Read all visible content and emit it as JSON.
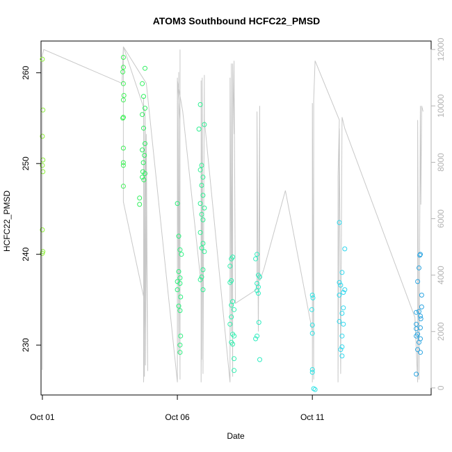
{
  "chart_data": {
    "type": "scatter",
    "title": "ATOM3 Southbound HCFC22_PMSD",
    "xlabel": "Date",
    "ylabel": "HCFC22_PMSD",
    "xlim": [
      -0.05,
      14.4
    ],
    "ylim": [
      224.5,
      263.5
    ],
    "y2lim": [
      -250,
      12300
    ],
    "x_ticks": [
      {
        "value": 0,
        "label": "Oct 01"
      },
      {
        "value": 5,
        "label": "Oct 06"
      },
      {
        "value": 10,
        "label": "Oct 11"
      }
    ],
    "y_ticks": [
      230,
      240,
      250,
      260
    ],
    "y2_ticks": [
      0,
      2000,
      4000,
      6000,
      8000,
      10000,
      12000
    ],
    "grid": false,
    "legend": "none",
    "colors": {
      "line": "#c8c8c8",
      "ramp": [
        "#8ef03a",
        "#2ef05a",
        "#2ef0b0",
        "#2ee0f0",
        "#2aa0e0"
      ]
    },
    "points": [
      {
        "x": 0.0,
        "y": 261.5
      },
      {
        "x": 0.02,
        "y": 255.9
      },
      {
        "x": 0.0,
        "y": 253.0
      },
      {
        "x": 0.02,
        "y": 250.4
      },
      {
        "x": 0.0,
        "y": 249.8
      },
      {
        "x": 0.02,
        "y": 249.1
      },
      {
        "x": 0.0,
        "y": 242.7
      },
      {
        "x": 0.02,
        "y": 240.3
      },
      {
        "x": 0.0,
        "y": 240.1
      },
      {
        "x": 3.0,
        "y": 261.7
      },
      {
        "x": 3.0,
        "y": 260.6
      },
      {
        "x": 2.98,
        "y": 260.1
      },
      {
        "x": 3.0,
        "y": 258.8
      },
      {
        "x": 3.02,
        "y": 257.5
      },
      {
        "x": 3.0,
        "y": 257.0
      },
      {
        "x": 3.0,
        "y": 255.1
      },
      {
        "x": 2.98,
        "y": 255.0
      },
      {
        "x": 3.0,
        "y": 251.7
      },
      {
        "x": 3.0,
        "y": 250.1
      },
      {
        "x": 3.0,
        "y": 249.8
      },
      {
        "x": 3.0,
        "y": 247.5
      },
      {
        "x": 3.8,
        "y": 260.5
      },
      {
        "x": 3.7,
        "y": 258.8
      },
      {
        "x": 3.75,
        "y": 257.4
      },
      {
        "x": 3.8,
        "y": 256.1
      },
      {
        "x": 3.7,
        "y": 255.4
      },
      {
        "x": 3.75,
        "y": 253.9
      },
      {
        "x": 3.8,
        "y": 252.2
      },
      {
        "x": 3.7,
        "y": 251.5
      },
      {
        "x": 3.78,
        "y": 250.9
      },
      {
        "x": 3.72,
        "y": 249.1
      },
      {
        "x": 3.8,
        "y": 248.9
      },
      {
        "x": 3.76,
        "y": 248.2
      },
      {
        "x": 3.74,
        "y": 250.1
      },
      {
        "x": 3.6,
        "y": 246.2
      },
      {
        "x": 3.6,
        "y": 245.5
      },
      {
        "x": 3.7,
        "y": 248.5
      },
      {
        "x": 5.0,
        "y": 245.6
      },
      {
        "x": 5.05,
        "y": 242.0
      },
      {
        "x": 5.1,
        "y": 240.5
      },
      {
        "x": 5.15,
        "y": 240.0
      },
      {
        "x": 5.05,
        "y": 238.1
      },
      {
        "x": 5.1,
        "y": 237.4
      },
      {
        "x": 5.0,
        "y": 237.0
      },
      {
        "x": 5.1,
        "y": 236.8
      },
      {
        "x": 5.0,
        "y": 236.1
      },
      {
        "x": 5.12,
        "y": 235.3
      },
      {
        "x": 5.05,
        "y": 234.3
      },
      {
        "x": 5.1,
        "y": 233.8
      },
      {
        "x": 5.12,
        "y": 231.0
      },
      {
        "x": 5.1,
        "y": 230.0
      },
      {
        "x": 5.1,
        "y": 229.2
      },
      {
        "x": 5.85,
        "y": 256.5
      },
      {
        "x": 5.8,
        "y": 253.8
      },
      {
        "x": 6.0,
        "y": 254.3
      },
      {
        "x": 5.9,
        "y": 249.8
      },
      {
        "x": 5.85,
        "y": 249.3
      },
      {
        "x": 5.95,
        "y": 248.5
      },
      {
        "x": 5.9,
        "y": 247.6
      },
      {
        "x": 5.95,
        "y": 246.5
      },
      {
        "x": 5.85,
        "y": 245.6
      },
      {
        "x": 6.0,
        "y": 245.1
      },
      {
        "x": 5.9,
        "y": 244.4
      },
      {
        "x": 5.95,
        "y": 243.8
      },
      {
        "x": 5.85,
        "y": 242.4
      },
      {
        "x": 5.95,
        "y": 241.2
      },
      {
        "x": 5.9,
        "y": 240.7
      },
      {
        "x": 6.0,
        "y": 240.3
      },
      {
        "x": 5.95,
        "y": 238.3
      },
      {
        "x": 5.9,
        "y": 237.5
      },
      {
        "x": 5.85,
        "y": 237.2
      },
      {
        "x": 5.95,
        "y": 236.1
      },
      {
        "x": 7.0,
        "y": 239.5
      },
      {
        "x": 7.05,
        "y": 239.7
      },
      {
        "x": 6.95,
        "y": 238.7
      },
      {
        "x": 7.0,
        "y": 237.1
      },
      {
        "x": 6.95,
        "y": 236.9
      },
      {
        "x": 7.05,
        "y": 234.8
      },
      {
        "x": 7.0,
        "y": 234.4
      },
      {
        "x": 7.1,
        "y": 233.9
      },
      {
        "x": 7.0,
        "y": 233.1
      },
      {
        "x": 6.95,
        "y": 232.3
      },
      {
        "x": 7.05,
        "y": 231.2
      },
      {
        "x": 7.1,
        "y": 231.0
      },
      {
        "x": 7.0,
        "y": 230.3
      },
      {
        "x": 7.05,
        "y": 230.1
      },
      {
        "x": 7.1,
        "y": 228.5
      },
      {
        "x": 7.1,
        "y": 227.2
      },
      {
        "x": 7.95,
        "y": 240.0
      },
      {
        "x": 7.9,
        "y": 239.5
      },
      {
        "x": 8.0,
        "y": 237.7
      },
      {
        "x": 8.05,
        "y": 237.5
      },
      {
        "x": 7.95,
        "y": 236.8
      },
      {
        "x": 8.0,
        "y": 236.4
      },
      {
        "x": 7.95,
        "y": 236.0
      },
      {
        "x": 8.0,
        "y": 235.7
      },
      {
        "x": 8.02,
        "y": 232.5
      },
      {
        "x": 7.95,
        "y": 231.0
      },
      {
        "x": 7.9,
        "y": 230.7
      },
      {
        "x": 8.05,
        "y": 228.4
      },
      {
        "x": 10.0,
        "y": 235.5
      },
      {
        "x": 10.02,
        "y": 235.2
      },
      {
        "x": 9.98,
        "y": 233.9
      },
      {
        "x": 10.0,
        "y": 232.2
      },
      {
        "x": 10.0,
        "y": 231.3
      },
      {
        "x": 10.0,
        "y": 227.3
      },
      {
        "x": 10.0,
        "y": 227.0
      },
      {
        "x": 10.05,
        "y": 225.2
      },
      {
        "x": 10.1,
        "y": 225.1
      },
      {
        "x": 11.0,
        "y": 243.5
      },
      {
        "x": 11.2,
        "y": 240.6
      },
      {
        "x": 11.1,
        "y": 238.0
      },
      {
        "x": 11.0,
        "y": 236.9
      },
      {
        "x": 11.05,
        "y": 236.6
      },
      {
        "x": 11.2,
        "y": 236.1
      },
      {
        "x": 11.15,
        "y": 235.8
      },
      {
        "x": 11.0,
        "y": 235.5
      },
      {
        "x": 11.15,
        "y": 234.1
      },
      {
        "x": 11.1,
        "y": 233.5
      },
      {
        "x": 11.0,
        "y": 232.6
      },
      {
        "x": 11.15,
        "y": 232.3
      },
      {
        "x": 11.1,
        "y": 231.0
      },
      {
        "x": 11.1,
        "y": 229.8
      },
      {
        "x": 11.05,
        "y": 229.5
      },
      {
        "x": 11.1,
        "y": 228.8
      },
      {
        "x": 14.0,
        "y": 240.0
      },
      {
        "x": 13.98,
        "y": 239.9
      },
      {
        "x": 13.95,
        "y": 238.5
      },
      {
        "x": 13.9,
        "y": 237.0
      },
      {
        "x": 14.05,
        "y": 235.5
      },
      {
        "x": 14.05,
        "y": 234.2
      },
      {
        "x": 13.95,
        "y": 233.7
      },
      {
        "x": 13.85,
        "y": 233.6
      },
      {
        "x": 14.0,
        "y": 233.2
      },
      {
        "x": 14.02,
        "y": 232.9
      },
      {
        "x": 13.85,
        "y": 232.3
      },
      {
        "x": 13.85,
        "y": 231.8
      },
      {
        "x": 14.0,
        "y": 231.9
      },
      {
        "x": 13.85,
        "y": 231.0
      },
      {
        "x": 13.9,
        "y": 231.2
      },
      {
        "x": 14.0,
        "y": 230.7
      },
      {
        "x": 13.95,
        "y": 230.3
      },
      {
        "x": 13.9,
        "y": 229.5
      },
      {
        "x": 14.0,
        "y": 229.2
      },
      {
        "x": 13.85,
        "y": 226.8
      }
    ],
    "altitude_series": [
      {
        "x": 0.0,
        "y": 640
      },
      {
        "x": 0.0,
        "y": 11800
      },
      {
        "x": 0.05,
        "y": 12000
      },
      {
        "x": 2.95,
        "y": 10800
      },
      {
        "x": 3.0,
        "y": 12100
      },
      {
        "x": 3.0,
        "y": 6600
      },
      {
        "x": 3.8,
        "y": 3000
      },
      {
        "x": 3.75,
        "y": 200
      },
      {
        "x": 3.75,
        "y": 10300
      },
      {
        "x": 3.78,
        "y": 400
      },
      {
        "x": 3.8,
        "y": 9600
      },
      {
        "x": 3.82,
        "y": 800
      },
      {
        "x": 3.85,
        "y": 9000
      },
      {
        "x": 3.9,
        "y": 600
      },
      {
        "x": 3.8,
        "y": 9800
      },
      {
        "x": 3.0,
        "y": 12100
      },
      {
        "x": 3.85,
        "y": 10800
      },
      {
        "x": 5.0,
        "y": 200
      },
      {
        "x": 5.0,
        "y": 11000
      },
      {
        "x": 5.05,
        "y": 1200
      },
      {
        "x": 5.05,
        "y": 11200
      },
      {
        "x": 5.1,
        "y": 300
      },
      {
        "x": 5.1,
        "y": 12000
      },
      {
        "x": 5.1,
        "y": 9500
      },
      {
        "x": 5.0,
        "y": 10900
      },
      {
        "x": 5.2,
        "y": 9800
      },
      {
        "x": 5.9,
        "y": 3500
      },
      {
        "x": 5.88,
        "y": 200
      },
      {
        "x": 5.88,
        "y": 10900
      },
      {
        "x": 5.9,
        "y": 1000
      },
      {
        "x": 5.92,
        "y": 11000
      },
      {
        "x": 5.95,
        "y": 500
      },
      {
        "x": 6.0,
        "y": 11100
      },
      {
        "x": 6.0,
        "y": 9500
      },
      {
        "x": 6.95,
        "y": 200
      },
      {
        "x": 6.95,
        "y": 11000
      },
      {
        "x": 7.0,
        "y": 2000
      },
      {
        "x": 7.0,
        "y": 11500
      },
      {
        "x": 7.05,
        "y": 400
      },
      {
        "x": 7.05,
        "y": 11500
      },
      {
        "x": 7.1,
        "y": 9000
      },
      {
        "x": 7.1,
        "y": 11600
      },
      {
        "x": 7.15,
        "y": 3000
      },
      {
        "x": 7.95,
        "y": 3500
      },
      {
        "x": 7.95,
        "y": 9800
      },
      {
        "x": 8.0,
        "y": 2000
      },
      {
        "x": 8.05,
        "y": 10000
      },
      {
        "x": 8.05,
        "y": 3800
      },
      {
        "x": 8.2,
        "y": 4200
      },
      {
        "x": 9.0,
        "y": 7000
      },
      {
        "x": 10.0,
        "y": 2000
      },
      {
        "x": 10.0,
        "y": 200
      },
      {
        "x": 10.0,
        "y": 10100
      },
      {
        "x": 10.05,
        "y": 300
      },
      {
        "x": 10.05,
        "y": 10200
      },
      {
        "x": 10.1,
        "y": 11600
      },
      {
        "x": 11.0,
        "y": 9500
      },
      {
        "x": 10.95,
        "y": 7500
      },
      {
        "x": 10.95,
        "y": 200
      },
      {
        "x": 11.0,
        "y": 9200
      },
      {
        "x": 11.05,
        "y": 500
      },
      {
        "x": 11.1,
        "y": 9600
      },
      {
        "x": 11.2,
        "y": 9200
      },
      {
        "x": 13.8,
        "y": 2500
      },
      {
        "x": 13.9,
        "y": 200
      },
      {
        "x": 13.9,
        "y": 9500
      },
      {
        "x": 13.95,
        "y": 300
      },
      {
        "x": 14.0,
        "y": 10000
      },
      {
        "x": 14.02,
        "y": 6500
      },
      {
        "x": 14.05,
        "y": 10000
      },
      {
        "x": 14.1,
        "y": 9800
      }
    ]
  }
}
